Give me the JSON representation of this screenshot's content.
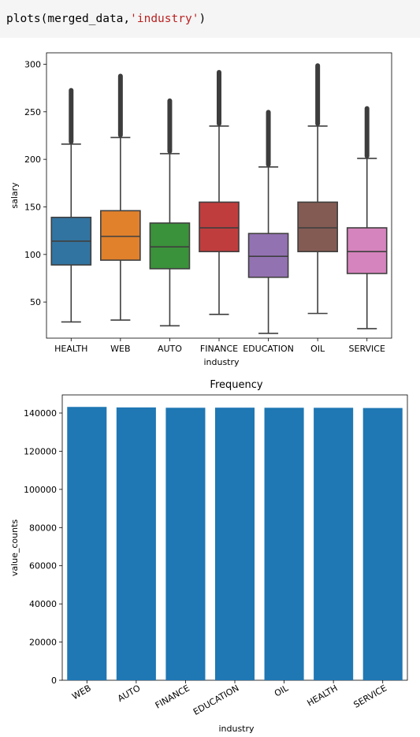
{
  "code_cell": {
    "prefix": "plots(merged_data,",
    "arg": "'industry'",
    "suffix": ")"
  },
  "chart_data": [
    {
      "type": "box",
      "title": "",
      "xlabel": "industry",
      "ylabel": "salary",
      "ylim": [
        12,
        312
      ],
      "yticks": [
        50,
        100,
        150,
        200,
        250,
        300
      ],
      "categories": [
        "HEALTH",
        "WEB",
        "AUTO",
        "FINANCE",
        "EDUCATION",
        "OIL",
        "SERVICE"
      ],
      "colors": [
        "#3274a1",
        "#e1812c",
        "#3a923a",
        "#c03d3e",
        "#9372b2",
        "#845b53",
        "#d684bd"
      ],
      "whisker_low": [
        29,
        31,
        25,
        37,
        17,
        38,
        22
      ],
      "q1": [
        89,
        94,
        85,
        103,
        76,
        103,
        80
      ],
      "median": [
        114,
        119,
        108,
        128,
        98,
        128,
        103
      ],
      "q3": [
        139,
        146,
        133,
        155,
        122,
        155,
        128
      ],
      "whisker_high": [
        216,
        223,
        206,
        235,
        192,
        235,
        201
      ],
      "outlier_max": [
        275,
        290,
        264,
        294,
        252,
        301,
        256
      ]
    },
    {
      "type": "bar",
      "title": "Frequency",
      "xlabel": "industry",
      "ylabel": "value_counts",
      "ylim": [
        0,
        149500
      ],
      "yticks": [
        0,
        20000,
        40000,
        60000,
        80000,
        100000,
        120000,
        140000
      ],
      "categories": [
        "WEB",
        "AUTO",
        "FINANCE",
        "EDUCATION",
        "OIL",
        "HEALTH",
        "SERVICE"
      ],
      "values": [
        143206,
        142943,
        142771,
        142819,
        142770,
        142755,
        142639
      ],
      "color": "#1f77b4"
    }
  ]
}
